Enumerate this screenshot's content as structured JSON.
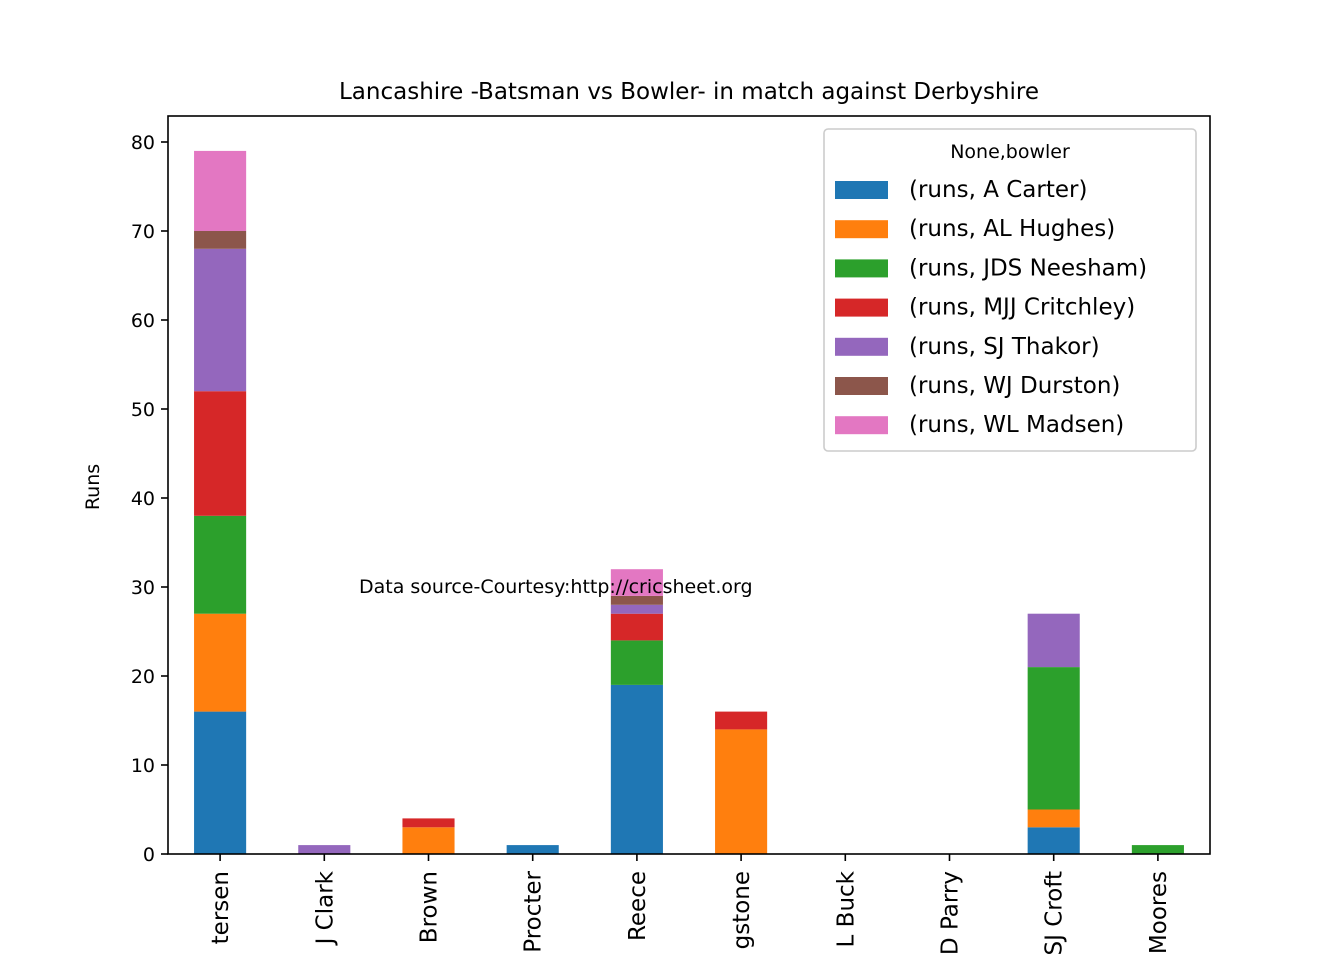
{
  "chart_data": {
    "type": "bar",
    "stacked": true,
    "title": "Lancashire -Batsman vs Bowler- in match against Derbyshire",
    "xlabel": "",
    "ylabel": "Runs",
    "ylim": [
      0,
      83
    ],
    "yticks": [
      0,
      10,
      20,
      30,
      40,
      50,
      60,
      70,
      80
    ],
    "grid": false,
    "legend_title": "None,bowler",
    "legend_position": "top-right",
    "annotation": "Data source-Courtesy:http://cricsheet.org",
    "categories": [
      "tersen",
      "J Clark",
      "Brown",
      "Procter",
      "Reece",
      "gstone",
      "L Buck",
      "D Parry",
      "SJ Croft",
      "Moores"
    ],
    "series": [
      {
        "name": "(runs, A Carter)",
        "color": "#1f77b4",
        "values": [
          16,
          0,
          0,
          1,
          19,
          0,
          0,
          0,
          3,
          0
        ]
      },
      {
        "name": "(runs, AL Hughes)",
        "color": "#ff7f0e",
        "values": [
          11,
          0,
          3,
          0,
          0,
          14,
          0,
          0,
          2,
          0
        ]
      },
      {
        "name": "(runs, JDS Neesham)",
        "color": "#2ca02c",
        "values": [
          11,
          0,
          0,
          0,
          5,
          0,
          0,
          0,
          16,
          1
        ]
      },
      {
        "name": "(runs, MJJ Critchley)",
        "color": "#d62728",
        "values": [
          14,
          0,
          1,
          0,
          3,
          2,
          0,
          0,
          0,
          0
        ]
      },
      {
        "name": "(runs, SJ Thakor)",
        "color": "#9467bd",
        "values": [
          16,
          1,
          0,
          0,
          1,
          0,
          0,
          0,
          6,
          0
        ]
      },
      {
        "name": "(runs, WJ Durston)",
        "color": "#8c564b",
        "values": [
          2,
          0,
          0,
          0,
          1,
          0,
          0,
          0,
          0,
          0
        ]
      },
      {
        "name": "(runs, WL Madsen)",
        "color": "#e377c2",
        "values": [
          9,
          0,
          0,
          0,
          3,
          0,
          0,
          0,
          0,
          0
        ]
      }
    ]
  }
}
